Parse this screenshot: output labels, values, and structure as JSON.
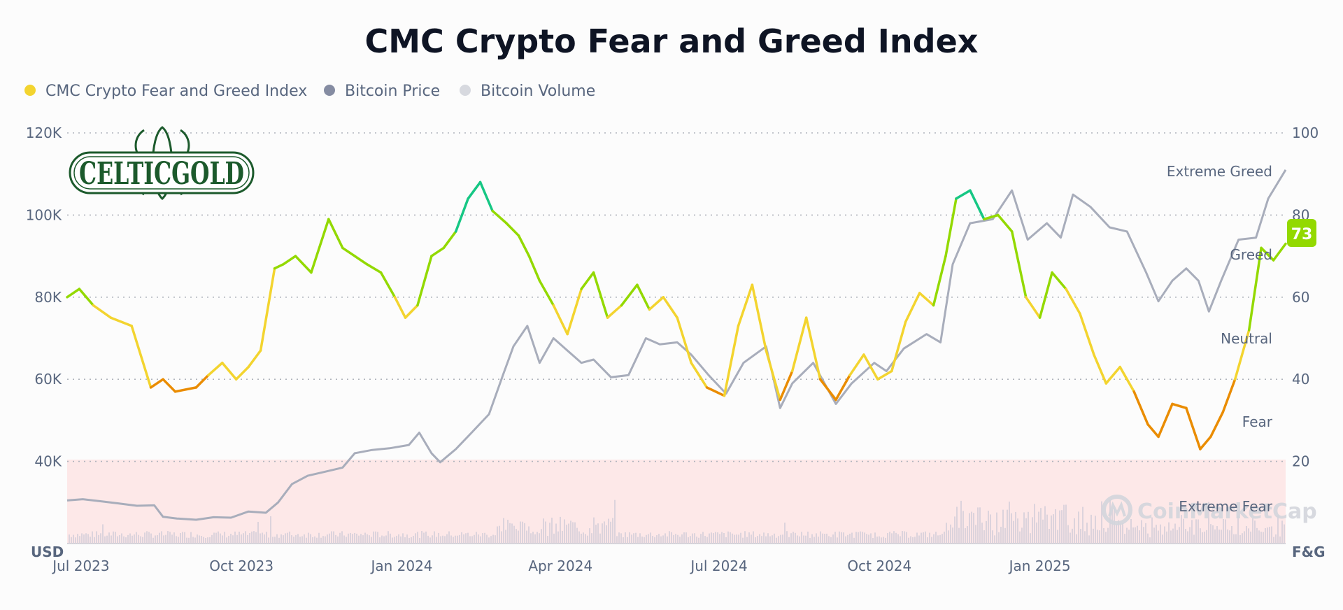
{
  "chart_data": {
    "type": "line",
    "title": "CMC Crypto Fear and Greed Index",
    "legend": [
      {
        "label": "CMC Crypto Fear and Greed Index",
        "color": "#f3d42f"
      },
      {
        "label": "Bitcoin Price",
        "color": "#858ca2"
      },
      {
        "label": "Bitcoin Volume",
        "color": "#d7d9df"
      }
    ],
    "x_ticks": [
      "Jul 2023",
      "Oct 2023",
      "Jan 2024",
      "Apr 2024",
      "Jul 2024",
      "Oct 2024",
      "Jan 2025"
    ],
    "x_tick_dates": [
      "2023-07-01",
      "2023-10-01",
      "2024-01-01",
      "2024-04-01",
      "2024-07-01",
      "2024-10-01",
      "2025-01-01"
    ],
    "x_range": [
      "2023-06-23",
      "2025-05-22"
    ],
    "y_left": {
      "unit": "USD",
      "range": [
        20000,
        120000
      ],
      "ticks": [
        40000,
        60000,
        80000,
        100000,
        120000
      ],
      "tick_labels": [
        "40K",
        "60K",
        "80K",
        "100K",
        "120K"
      ]
    },
    "y_right": {
      "unit": "F&G",
      "range": [
        0,
        100
      ],
      "ticks": [
        20,
        40,
        60,
        80,
        100
      ],
      "tick_labels": [
        "20",
        "40",
        "60",
        "80",
        "100"
      ]
    },
    "zones": [
      {
        "label": "Extreme Greed",
        "from": 80,
        "to": 100,
        "color": "#16c784"
      },
      {
        "label": "Greed",
        "from": 60,
        "to": 80,
        "color": "#93d900"
      },
      {
        "label": "Neutral",
        "from": 40,
        "to": 60,
        "color": "#f3d42f"
      },
      {
        "label": "Fear",
        "from": 20,
        "to": 40,
        "color": "#ea8c00"
      },
      {
        "label": "Extreme Fear",
        "from": 0,
        "to": 20,
        "color": "#ea3943"
      }
    ],
    "current_value": "73",
    "current_color": "#93d900",
    "fear_greed_series": {
      "name": "CMC Crypto Fear and Greed Index",
      "dates": [
        "2023-06-23",
        "2023-06-30",
        "2023-07-08",
        "2023-07-18",
        "2023-07-30",
        "2023-08-10",
        "2023-08-17",
        "2023-08-24",
        "2023-09-05",
        "2023-09-12",
        "2023-09-20",
        "2023-09-28",
        "2023-10-05",
        "2023-10-12",
        "2023-10-20",
        "2023-10-25",
        "2023-11-01",
        "2023-11-10",
        "2023-11-20",
        "2023-11-28",
        "2023-12-05",
        "2023-12-12",
        "2023-12-20",
        "2023-12-28",
        "2024-01-03",
        "2024-01-10",
        "2024-01-18",
        "2024-01-25",
        "2024-02-01",
        "2024-02-08",
        "2024-02-15",
        "2024-02-22",
        "2024-03-01",
        "2024-03-08",
        "2024-03-14",
        "2024-03-20",
        "2024-03-28",
        "2024-04-05",
        "2024-04-13",
        "2024-04-20",
        "2024-04-28",
        "2024-05-06",
        "2024-05-15",
        "2024-05-22",
        "2024-05-30",
        "2024-06-07",
        "2024-06-15",
        "2024-06-24",
        "2024-07-04",
        "2024-07-12",
        "2024-07-20",
        "2024-07-28",
        "2024-08-05",
        "2024-08-12",
        "2024-08-20",
        "2024-08-28",
        "2024-09-06",
        "2024-09-14",
        "2024-09-22",
        "2024-09-30",
        "2024-10-08",
        "2024-10-16",
        "2024-10-24",
        "2024-11-01",
        "2024-11-08",
        "2024-11-14",
        "2024-11-22",
        "2024-11-30",
        "2024-12-08",
        "2024-12-16",
        "2024-12-24",
        "2025-01-01",
        "2025-01-08",
        "2025-01-16",
        "2025-01-24",
        "2025-02-01",
        "2025-02-08",
        "2025-02-16",
        "2025-02-24",
        "2025-03-04",
        "2025-03-10",
        "2025-03-18",
        "2025-03-26",
        "2025-04-03",
        "2025-04-09",
        "2025-04-16",
        "2025-04-23",
        "2025-05-01",
        "2025-05-08",
        "2025-05-15",
        "2025-05-22"
      ],
      "values": [
        60,
        62,
        58,
        55,
        53,
        38,
        40,
        37,
        38,
        41,
        44,
        40,
        43,
        47,
        67,
        68,
        70,
        66,
        79,
        72,
        70,
        68,
        66,
        60,
        55,
        58,
        70,
        72,
        76,
        84,
        88,
        81,
        78,
        75,
        70,
        64,
        58,
        51,
        62,
        66,
        55,
        58,
        63,
        57,
        60,
        55,
        44,
        38,
        36,
        53,
        63,
        47,
        35,
        42,
        55,
        40,
        35,
        41,
        46,
        40,
        42,
        54,
        61,
        58,
        70,
        84,
        86,
        79,
        80,
        76,
        60,
        55,
        66,
        62,
        56,
        46,
        39,
        43,
        37,
        29,
        26,
        34,
        33,
        23,
        26,
        32,
        40,
        52,
        72,
        69,
        73
      ]
    },
    "bitcoin_price_series": {
      "name": "Bitcoin Price",
      "dates": [
        "2023-06-23",
        "2023-07-02",
        "2023-07-12",
        "2023-07-22",
        "2023-08-02",
        "2023-08-12",
        "2023-08-17",
        "2023-08-25",
        "2023-09-05",
        "2023-09-15",
        "2023-09-25",
        "2023-10-05",
        "2023-10-15",
        "2023-10-22",
        "2023-10-30",
        "2023-11-08",
        "2023-11-18",
        "2023-11-28",
        "2023-12-05",
        "2023-12-15",
        "2023-12-25",
        "2024-01-05",
        "2024-01-11",
        "2024-01-18",
        "2024-01-23",
        "2024-02-01",
        "2024-02-10",
        "2024-02-20",
        "2024-02-28",
        "2024-03-05",
        "2024-03-13",
        "2024-03-20",
        "2024-03-28",
        "2024-04-05",
        "2024-04-13",
        "2024-04-20",
        "2024-04-30",
        "2024-05-10",
        "2024-05-20",
        "2024-05-28",
        "2024-06-07",
        "2024-06-15",
        "2024-06-25",
        "2024-07-05",
        "2024-07-15",
        "2024-07-28",
        "2024-08-05",
        "2024-08-12",
        "2024-08-24",
        "2024-09-06",
        "2024-09-15",
        "2024-09-28",
        "2024-10-05",
        "2024-10-15",
        "2024-10-28",
        "2024-11-05",
        "2024-11-12",
        "2024-11-22",
        "2024-12-05",
        "2024-12-16",
        "2024-12-25",
        "2025-01-05",
        "2025-01-13",
        "2025-01-20",
        "2025-01-30",
        "2025-02-10",
        "2025-02-20",
        "2025-03-03",
        "2025-03-10",
        "2025-03-18",
        "2025-03-26",
        "2025-04-02",
        "2025-04-08",
        "2025-04-15",
        "2025-04-25",
        "2025-05-05",
        "2025-05-12",
        "2025-05-22"
      ],
      "values": [
        30500,
        30800,
        30300,
        29800,
        29200,
        29300,
        26500,
        26100,
        25800,
        26400,
        26300,
        27800,
        27500,
        30000,
        34500,
        36500,
        37500,
        38500,
        42000,
        42800,
        43200,
        44000,
        47000,
        42000,
        39800,
        43000,
        47000,
        51500,
        61000,
        68000,
        73000,
        64000,
        70000,
        67000,
        64000,
        64800,
        60500,
        61000,
        70000,
        68500,
        69000,
        66000,
        61000,
        56500,
        64000,
        68000,
        53000,
        59000,
        64000,
        54000,
        59000,
        64000,
        62000,
        67500,
        71000,
        69000,
        88000,
        98000,
        99000,
        106000,
        94000,
        98000,
        94500,
        105000,
        102000,
        97000,
        96000,
        86000,
        79000,
        84000,
        87000,
        84000,
        76500,
        84000,
        94000,
        94500,
        104000,
        111000
      ]
    },
    "volume_note": "Bitcoin Volume"
  },
  "logo_text": "CELTICGOLD",
  "watermark_text": "CoinMarketCap"
}
